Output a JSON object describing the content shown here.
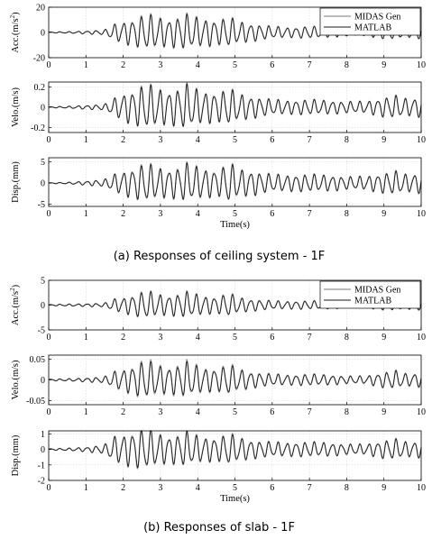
{
  "captions": {
    "a": "(a) Responses of ceiling system - 1F",
    "b": "(b) Responses of slab - 1F"
  },
  "colors": {
    "midas": "#a6a6a6",
    "matlab": "#1a1a1a",
    "axes": "#000000",
    "grid": "#d9d9d9"
  },
  "chart_data": [
    {
      "type": "line",
      "group": "a",
      "ylabel": "Acc.(m/s^2)",
      "ylim": [
        -20,
        20
      ],
      "yticks": [
        -20,
        0,
        20
      ],
      "xlim": [
        0,
        10
      ],
      "xticks": [
        0,
        1,
        2,
        3,
        4,
        5,
        6,
        7,
        8,
        9,
        10
      ],
      "xlabel": "",
      "grid": true,
      "legend": {
        "placement": "top-right",
        "entries": [
          "MIDAS Gen",
          "MATLAB"
        ]
      },
      "series": [
        {
          "name": "MIDAS Gen",
          "x_range": [
            0,
            10
          ],
          "approx_peak": 16
        },
        {
          "name": "MATLAB",
          "x_range": [
            0,
            10
          ],
          "approx_peak": 15
        }
      ],
      "envelope_abs": [
        [
          0,
          0.4
        ],
        [
          0.5,
          0.6
        ],
        [
          1,
          1.2
        ],
        [
          1.5,
          2
        ],
        [
          1.7,
          6
        ],
        [
          2,
          9
        ],
        [
          2.3,
          11
        ],
        [
          2.6,
          15
        ],
        [
          2.9,
          13
        ],
        [
          3.2,
          11
        ],
        [
          3.5,
          13
        ],
        [
          3.7,
          15
        ],
        [
          4,
          12
        ],
        [
          4.3,
          11
        ],
        [
          4.6,
          10
        ],
        [
          4.8,
          13
        ],
        [
          5.1,
          9
        ],
        [
          5.5,
          7
        ],
        [
          6,
          5
        ],
        [
          6.5,
          4
        ],
        [
          7,
          5
        ],
        [
          7.5,
          4
        ],
        [
          8,
          3
        ],
        [
          8.5,
          3
        ],
        [
          9,
          5
        ],
        [
          9.3,
          6
        ],
        [
          9.6,
          4
        ],
        [
          10,
          5
        ]
      ]
    },
    {
      "type": "line",
      "group": "a",
      "ylabel": "Velo.(m/s)",
      "ylim": [
        -0.25,
        0.25
      ],
      "yticks": [
        -0.2,
        0,
        0.2
      ],
      "ytick_labels": [
        "-0.2",
        "0",
        "0.2"
      ],
      "xlim": [
        0,
        10
      ],
      "xticks": [
        0,
        1,
        2,
        3,
        4,
        5,
        6,
        7,
        8,
        9,
        10
      ],
      "xlabel": "",
      "grid": true,
      "series": [
        {
          "name": "MIDAS Gen",
          "x_range": [
            0,
            10
          ],
          "approx_peak": 0.25
        },
        {
          "name": "MATLAB",
          "x_range": [
            0,
            10
          ],
          "approx_peak": 0.24
        }
      ],
      "envelope_abs": [
        [
          0,
          0.005
        ],
        [
          0.5,
          0.01
        ],
        [
          1,
          0.02
        ],
        [
          1.5,
          0.03
        ],
        [
          1.7,
          0.08
        ],
        [
          2,
          0.14
        ],
        [
          2.3,
          0.18
        ],
        [
          2.6,
          0.24
        ],
        [
          2.9,
          0.2
        ],
        [
          3.2,
          0.17
        ],
        [
          3.5,
          0.2
        ],
        [
          3.7,
          0.24
        ],
        [
          4,
          0.18
        ],
        [
          4.3,
          0.16
        ],
        [
          4.6,
          0.15
        ],
        [
          4.8,
          0.2
        ],
        [
          5.1,
          0.14
        ],
        [
          5.5,
          0.11
        ],
        [
          6,
          0.08
        ],
        [
          6.5,
          0.07
        ],
        [
          7,
          0.08
        ],
        [
          7.5,
          0.07
        ],
        [
          8,
          0.06
        ],
        [
          8.5,
          0.06
        ],
        [
          9,
          0.1
        ],
        [
          9.3,
          0.12
        ],
        [
          9.6,
          0.09
        ],
        [
          10,
          0.1
        ]
      ]
    },
    {
      "type": "line",
      "group": "a",
      "ylabel": "Disp.(mm)",
      "ylim": [
        -5.5,
        6
      ],
      "yticks": [
        -5,
        0,
        5
      ],
      "xlim": [
        0,
        10
      ],
      "xticks": [
        0,
        1,
        2,
        3,
        4,
        5,
        6,
        7,
        8,
        9,
        10
      ],
      "xlabel": "Time(s)",
      "grid": true,
      "series": [
        {
          "name": "MIDAS Gen",
          "x_range": [
            0,
            10
          ],
          "approx_peak": 5.5
        },
        {
          "name": "MATLAB",
          "x_range": [
            0,
            10
          ],
          "approx_peak": 5.2
        }
      ],
      "envelope_abs": [
        [
          0,
          0.1
        ],
        [
          0.5,
          0.2
        ],
        [
          1,
          0.5
        ],
        [
          1.5,
          0.9
        ],
        [
          1.7,
          2
        ],
        [
          2,
          3
        ],
        [
          2.3,
          3.8
        ],
        [
          2.6,
          5
        ],
        [
          2.9,
          4
        ],
        [
          3.2,
          3.5
        ],
        [
          3.5,
          4
        ],
        [
          3.7,
          5
        ],
        [
          4,
          4
        ],
        [
          4.3,
          3.5
        ],
        [
          4.6,
          3.3
        ],
        [
          4.8,
          5.3
        ],
        [
          5.1,
          3.5
        ],
        [
          5.5,
          3
        ],
        [
          6,
          2.2
        ],
        [
          6.5,
          2
        ],
        [
          7,
          2.2
        ],
        [
          7.5,
          2
        ],
        [
          8,
          1.6
        ],
        [
          8.5,
          1.7
        ],
        [
          9,
          2.5
        ],
        [
          9.3,
          3
        ],
        [
          9.6,
          2.2
        ],
        [
          10,
          2.5
        ]
      ]
    },
    {
      "type": "line",
      "group": "b",
      "ylabel": "Acc.(m/s^2)",
      "ylim": [
        -5,
        5
      ],
      "yticks": [
        -5,
        0,
        5
      ],
      "xlim": [
        0,
        10
      ],
      "xticks": [
        0,
        1,
        2,
        3,
        4,
        5,
        6,
        7,
        8,
        9,
        10
      ],
      "xlabel": "",
      "grid": true,
      "legend": {
        "placement": "top-right",
        "entries": [
          "MIDAS Gen",
          "MATLAB"
        ]
      },
      "series": [
        {
          "name": "MIDAS Gen",
          "x_range": [
            0,
            10
          ],
          "approx_peak": 3.2
        },
        {
          "name": "MATLAB",
          "x_range": [
            0,
            10
          ],
          "approx_peak": 3
        }
      ],
      "envelope_abs": [
        [
          0,
          0.15
        ],
        [
          0.5,
          0.2
        ],
        [
          1,
          0.3
        ],
        [
          1.5,
          0.4
        ],
        [
          1.7,
          1.2
        ],
        [
          2,
          1.6
        ],
        [
          2.3,
          2.2
        ],
        [
          2.6,
          3
        ],
        [
          2.9,
          2.4
        ],
        [
          3.2,
          2
        ],
        [
          3.5,
          2.4
        ],
        [
          3.7,
          2.8
        ],
        [
          4,
          2.2
        ],
        [
          4.3,
          1.8
        ],
        [
          4.6,
          1.8
        ],
        [
          4.8,
          2.6
        ],
        [
          5.1,
          1.6
        ],
        [
          5.5,
          1.2
        ],
        [
          6,
          0.9
        ],
        [
          6.5,
          0.8
        ],
        [
          7,
          0.9
        ],
        [
          7.5,
          0.8
        ],
        [
          8,
          0.6
        ],
        [
          8.5,
          0.6
        ],
        [
          9,
          1
        ],
        [
          9.3,
          1.2
        ],
        [
          9.6,
          0.9
        ],
        [
          10,
          1
        ]
      ]
    },
    {
      "type": "line",
      "group": "b",
      "ylabel": "Velo.(m/s)",
      "ylim": [
        -0.06,
        0.06
      ],
      "yticks": [
        -0.05,
        0,
        0.05
      ],
      "ytick_labels": [
        "-0.05",
        "0",
        "0.05"
      ],
      "xlim": [
        0,
        10
      ],
      "xticks": [
        0,
        1,
        2,
        3,
        4,
        5,
        6,
        7,
        8,
        9,
        10
      ],
      "xlabel": "",
      "grid": true,
      "series": [
        {
          "name": "MIDAS Gen",
          "x_range": [
            0,
            10
          ],
          "approx_peak": 0.055
        },
        {
          "name": "MATLAB",
          "x_range": [
            0,
            10
          ],
          "approx_peak": 0.05
        }
      ],
      "envelope_abs": [
        [
          0,
          0.002
        ],
        [
          0.5,
          0.003
        ],
        [
          1,
          0.005
        ],
        [
          1.5,
          0.008
        ],
        [
          1.7,
          0.02
        ],
        [
          2,
          0.028
        ],
        [
          2.3,
          0.038
        ],
        [
          2.6,
          0.052
        ],
        [
          2.9,
          0.04
        ],
        [
          3.2,
          0.034
        ],
        [
          3.5,
          0.04
        ],
        [
          3.7,
          0.048
        ],
        [
          4,
          0.036
        ],
        [
          4.3,
          0.03
        ],
        [
          4.6,
          0.03
        ],
        [
          4.8,
          0.042
        ],
        [
          5.1,
          0.028
        ],
        [
          5.5,
          0.02
        ],
        [
          6,
          0.015
        ],
        [
          6.5,
          0.013
        ],
        [
          7,
          0.015
        ],
        [
          7.5,
          0.013
        ],
        [
          8,
          0.01
        ],
        [
          8.5,
          0.01
        ],
        [
          9,
          0.02
        ],
        [
          9.3,
          0.024
        ],
        [
          9.6,
          0.016
        ],
        [
          10,
          0.018
        ]
      ]
    },
    {
      "type": "line",
      "group": "b",
      "ylabel": "Disp.(mm)",
      "ylim": [
        -2,
        1.2
      ],
      "yticks": [
        -2,
        -1,
        0,
        1
      ],
      "xlim": [
        0,
        10
      ],
      "xticks": [
        0,
        1,
        2,
        3,
        4,
        5,
        6,
        7,
        8,
        9,
        10
      ],
      "xlabel": "Time(s)",
      "grid": true,
      "series": [
        {
          "name": "MIDAS Gen",
          "x_range": [
            0,
            10
          ],
          "approx_peak": 1.5
        },
        {
          "name": "MATLAB",
          "x_range": [
            0,
            10
          ],
          "approx_peak": 1.4
        }
      ],
      "envelope_abs": [
        [
          0,
          0.05
        ],
        [
          0.5,
          0.08
        ],
        [
          1,
          0.15
        ],
        [
          1.5,
          0.3
        ],
        [
          1.7,
          0.8
        ],
        [
          2,
          1
        ],
        [
          2.3,
          1.2
        ],
        [
          2.6,
          1.4
        ],
        [
          2.9,
          1.1
        ],
        [
          3.2,
          0.9
        ],
        [
          3.5,
          1
        ],
        [
          3.7,
          1.2
        ],
        [
          4,
          0.9
        ],
        [
          4.3,
          0.8
        ],
        [
          4.6,
          0.8
        ],
        [
          4.8,
          1.1
        ],
        [
          5.1,
          0.8
        ],
        [
          5.5,
          0.6
        ],
        [
          6,
          0.5
        ],
        [
          6.5,
          0.45
        ],
        [
          7,
          0.5
        ],
        [
          7.5,
          0.45
        ],
        [
          8,
          0.35
        ],
        [
          8.5,
          0.35
        ],
        [
          9,
          0.6
        ],
        [
          9.3,
          0.7
        ],
        [
          9.6,
          0.5
        ],
        [
          10,
          0.55
        ]
      ]
    }
  ]
}
